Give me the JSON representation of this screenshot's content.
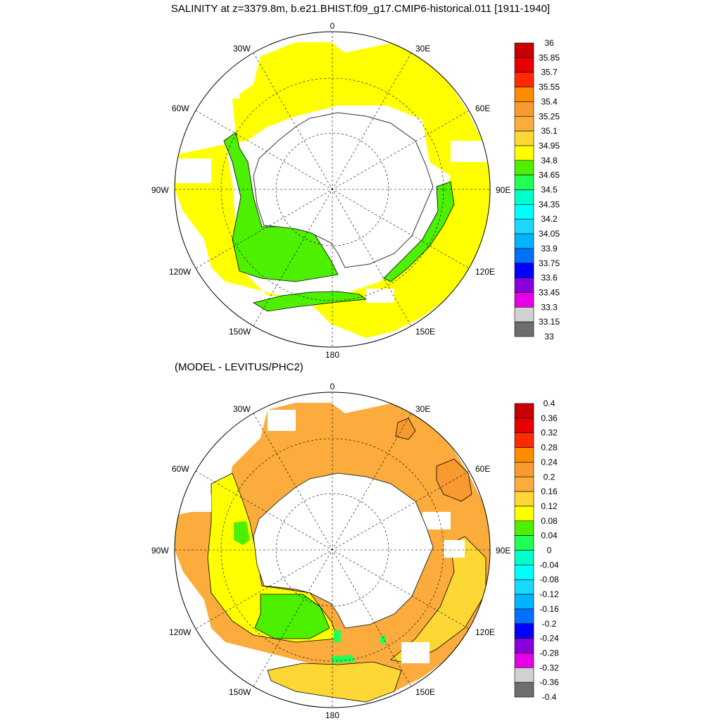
{
  "titles": {
    "main": "SALINITY at z=3379.8m, b.e21.BHIST.f09_g17.CMIP6-historical.011 [1911-1940]",
    "difference": "(MODEL - LEVITUS/PHC2)"
  },
  "map_labels": {
    "top": "0",
    "bottom": "180",
    "left": "90W",
    "right": "90E",
    "upper_left_1": "30W",
    "upper_left_2": "60W",
    "upper_right_1": "30E",
    "upper_right_2": "60E",
    "lower_left_1": "120W",
    "lower_left_2": "150W",
    "lower_right_1": "120E",
    "lower_right_2": "150E"
  },
  "salinity_colorbar": {
    "labels": [
      "36",
      "35.85",
      "35.7",
      "35.55",
      "35.4",
      "35.25",
      "35.1",
      "34.95",
      "34.8",
      "34.65",
      "34.5",
      "34.35",
      "34.2",
      "34.05",
      "33.9",
      "33.75",
      "33.6",
      "33.45",
      "33.3",
      "33.15",
      "33"
    ],
    "colors": [
      "#c80000",
      "#e60000",
      "#ff2a00",
      "#ff8c00",
      "#f89a30",
      "#fbac3c",
      "#fdd835",
      "#ffff00",
      "#4cf000",
      "#22ff55",
      "#00ffcc",
      "#00ffff",
      "#1ad8ff",
      "#00b4ff",
      "#0070ff",
      "#0000ff",
      "#8a00dc",
      "#e600e6",
      "#d2d2d2",
      "#6e6e6e"
    ]
  },
  "difference_colorbar": {
    "labels": [
      "0.4",
      "0.36",
      "0.32",
      "0.28",
      "0.24",
      "0.2",
      "0.16",
      "0.12",
      "0.08",
      "0.04",
      "0",
      "-0.04",
      "-0.08",
      "-0.12",
      "-0.16",
      "-0.2",
      "-0.24",
      "-0.28",
      "-0.32",
      "-0.36",
      "-0.4"
    ],
    "colors": [
      "#c80000",
      "#e60000",
      "#ff2a00",
      "#ff8c00",
      "#f89a30",
      "#fbac3c",
      "#fdd835",
      "#ffff00",
      "#4cf000",
      "#22ff55",
      "#00ffcc",
      "#00ffff",
      "#1ad8ff",
      "#00b4ff",
      "#0070ff",
      "#0000ff",
      "#8a00dc",
      "#e600e6",
      "#d2d2d2",
      "#6e6e6e"
    ]
  },
  "field_colors": {
    "land": "#ffffff",
    "missing": "#ffffff",
    "sal_yellow": "#ffff00",
    "sal_green": "#4cf000",
    "diff_orange": "#fbac3c",
    "diff_darkorange": "#f89a30",
    "diff_gold": "#fdd835",
    "diff_yellow": "#ffff00",
    "diff_green": "#4cf000",
    "diff_springgreen": "#22ff55"
  }
}
